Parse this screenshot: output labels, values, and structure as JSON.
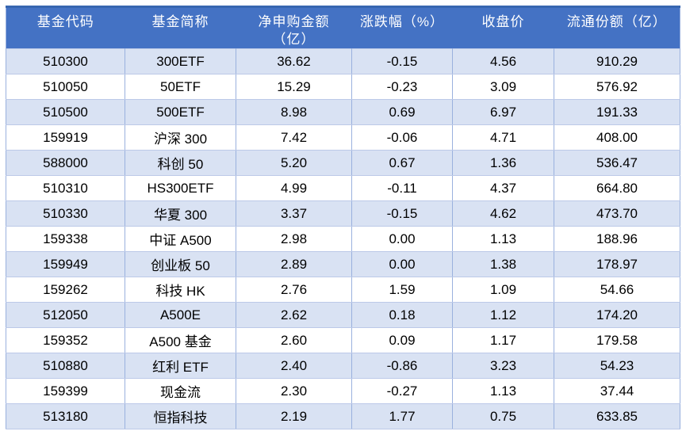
{
  "colors": {
    "header_bg": "#4472C4",
    "header_top_border": "#3766B0",
    "band_row_bg": "#D9E2F3",
    "row_bg": "#FFFFFF",
    "border_v": "#9AB1DE",
    "border_h": "#BCC9E8",
    "outer_border": "#9AB1DE",
    "header_text": "#FFFFFF",
    "cell_text": "#000000"
  },
  "chart_data": {
    "type": "table",
    "columns": [
      {
        "line1": "基金代码",
        "line2": ""
      },
      {
        "line1": "基金简称",
        "line2": ""
      },
      {
        "line1": "净申购金额",
        "line2": "（亿）"
      },
      {
        "line1": "涨跌幅（%）",
        "line2": ""
      },
      {
        "line1": "收盘价",
        "line2": ""
      },
      {
        "line1": "流通份额（亿）",
        "line2": ""
      }
    ],
    "rows": [
      [
        "510300",
        "300ETF",
        "36.62",
        "-0.15",
        "4.56",
        "910.29"
      ],
      [
        "510050",
        "50ETF",
        "15.29",
        "-0.23",
        "3.09",
        "576.92"
      ],
      [
        "510500",
        "500ETF",
        "8.98",
        "0.69",
        "6.97",
        "191.33"
      ],
      [
        "159919",
        "沪深 300",
        "7.42",
        "-0.06",
        "4.71",
        "408.00"
      ],
      [
        "588000",
        "科创 50",
        "5.20",
        "0.67",
        "1.36",
        "536.47"
      ],
      [
        "510310",
        "HS300ETF",
        "4.99",
        "-0.11",
        "4.37",
        "664.80"
      ],
      [
        "510330",
        "华夏 300",
        "3.37",
        "-0.15",
        "4.62",
        "473.70"
      ],
      [
        "159338",
        "中证 A500",
        "2.98",
        "0.00",
        "1.13",
        "188.96"
      ],
      [
        "159949",
        "创业板 50",
        "2.89",
        "0.00",
        "1.38",
        "178.97"
      ],
      [
        "159262",
        "科技 HK",
        "2.76",
        "1.59",
        "1.09",
        "54.66"
      ],
      [
        "512050",
        "A500E",
        "2.62",
        "0.18",
        "1.12",
        "174.20"
      ],
      [
        "159352",
        "A500 基金",
        "2.60",
        "0.09",
        "1.17",
        "179.58"
      ],
      [
        "510880",
        "红利 ETF",
        "2.40",
        "-0.86",
        "3.23",
        "54.23"
      ],
      [
        "159399",
        "现金流",
        "2.30",
        "-0.27",
        "1.13",
        "37.44"
      ],
      [
        "513180",
        "恒指科技",
        "2.19",
        "1.77",
        "0.75",
        "633.85"
      ]
    ]
  }
}
